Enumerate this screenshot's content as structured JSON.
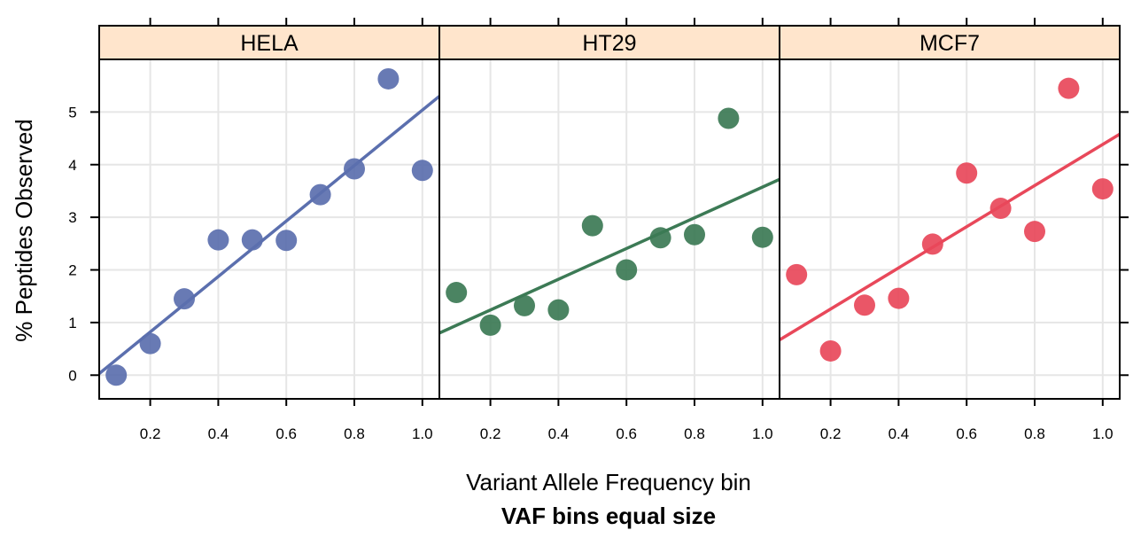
{
  "chart_data": {
    "type": "scatter",
    "layout": "lattice panels, 1 row x 3 columns, shared axes",
    "xlabel": "Variant Allele Frequency bin",
    "ylabel": "% Peptides Observed",
    "subtitle": "VAF bins equal size",
    "xlim": [
      0.05,
      1.05
    ],
    "ylim": [
      -0.45,
      6.0
    ],
    "x_ticks": [
      0.2,
      0.4,
      0.6,
      0.8,
      1.0
    ],
    "x_tick_labels": [
      "0.2",
      "0.4",
      "0.6",
      "0.8",
      "1.0"
    ],
    "y_ticks": [
      0,
      1,
      2,
      3,
      4,
      5
    ],
    "y_tick_labels": [
      "0",
      "1",
      "2",
      "3",
      "4",
      "5"
    ],
    "grid": true,
    "strip_color": "#ffe5cc",
    "panels": [
      {
        "name": "HELA",
        "color": "#5b6fae",
        "x": [
          0.1,
          0.2,
          0.3,
          0.4,
          0.5,
          0.6,
          0.7,
          0.8,
          0.9,
          1.0
        ],
        "y": [
          0.0,
          0.6,
          1.45,
          2.57,
          2.57,
          2.56,
          3.43,
          3.92,
          5.63,
          3.89
        ],
        "fit_line": {
          "x": [
            0.05,
            1.05
          ],
          "y": [
            0.03,
            5.3
          ]
        }
      },
      {
        "name": "HT29",
        "color": "#3c7a55",
        "x": [
          0.1,
          0.2,
          0.3,
          0.4,
          0.5,
          0.6,
          0.7,
          0.8,
          0.9,
          1.0
        ],
        "y": [
          1.57,
          0.95,
          1.32,
          1.24,
          2.84,
          2.0,
          2.61,
          2.67,
          4.88,
          2.62
        ],
        "fit_line": {
          "x": [
            0.05,
            1.05
          ],
          "y": [
            0.8,
            3.72
          ]
        }
      },
      {
        "name": "MCF7",
        "color": "#e8485a",
        "x": [
          0.1,
          0.2,
          0.3,
          0.4,
          0.5,
          0.6,
          0.7,
          0.8,
          0.9,
          1.0
        ],
        "y": [
          1.91,
          0.46,
          1.33,
          1.46,
          2.49,
          3.84,
          3.17,
          2.73,
          5.45,
          3.54
        ],
        "fit_line": {
          "x": [
            0.05,
            1.05
          ],
          "y": [
            0.67,
            4.58
          ]
        }
      }
    ]
  }
}
